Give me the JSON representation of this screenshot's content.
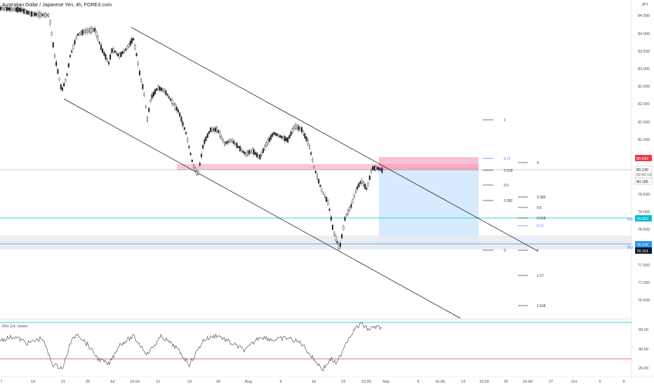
{
  "header": {
    "symbol_title": "Australian Dollar / Japanese Yen, 4h, FOREX.com",
    "currency": "JPY"
  },
  "price_axis": {
    "ticks": [
      "84.500",
      "84.000",
      "83.500",
      "83.000",
      "82.500",
      "82.000",
      "81.500",
      "81.000",
      "80.500",
      "80.000",
      "79.500",
      "79.000",
      "78.500",
      "78.000",
      "77.500",
      "77.000",
      "76.500"
    ],
    "last_price_label": "80.542",
    "current_price_label": "80.230",
    "countdown_label": "02:42:13",
    "bid_label": "80.185",
    "tp1_label": "78.853",
    "tp2a_label": "78.105",
    "tp2b_label": "78.101",
    "colors": {
      "last_price": "#f23645",
      "tp_line": "#00bcd4",
      "dark_label": "#131722"
    }
  },
  "time_axis": {
    "ticks": [
      "7",
      "14",
      "21",
      "25",
      "Jul",
      "15:00",
      "12",
      "19",
      "26",
      "Aug",
      "9",
      "16",
      "23",
      "15:00",
      "Sep",
      "6",
      "15:00",
      "13",
      "15:00",
      "20",
      "15:00",
      "27",
      "Oct",
      "5",
      "9"
    ]
  },
  "fib_left": {
    "levels": [
      "1",
      "0.71",
      "0.618",
      "0.5",
      "0.382",
      "0"
    ]
  },
  "fib_right": {
    "levels": [
      "0",
      "0.382",
      "0.5",
      "0.618",
      "0.71",
      "1",
      "1.27",
      "1.618"
    ]
  },
  "tp_markers": {
    "tp1": "TP1",
    "tp2": "TP2"
  },
  "rsi": {
    "title": "RSI (14, close)",
    "ticks": [
      "60.00",
      "40.00",
      "20.00"
    ],
    "colors": {
      "line": "#555555",
      "upper": "#00bcd4",
      "lower": "#f23645"
    }
  },
  "colors": {
    "resistance_zone": "#f8bbd0",
    "stop_zone": "#f48fb1",
    "target_zone": "#bbdefb",
    "support_zone": "#e0e0e0",
    "channel_line": "#222222"
  }
}
